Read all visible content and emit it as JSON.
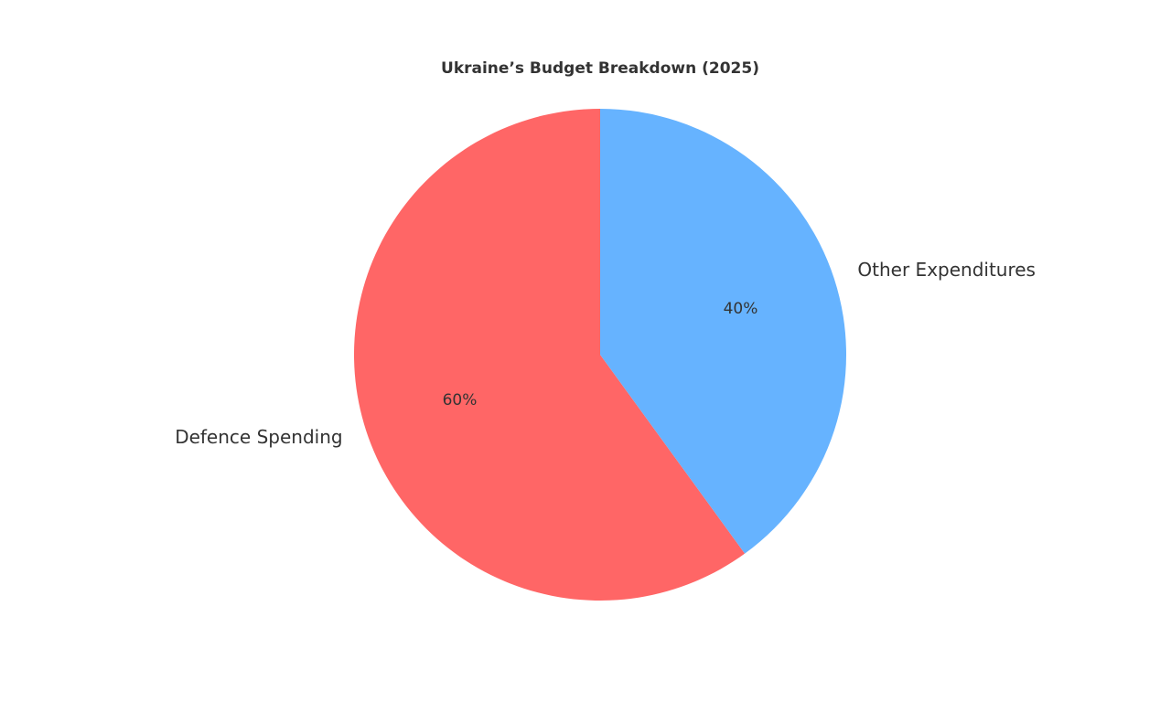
{
  "chart_data": {
    "type": "pie",
    "title": "Ukraine’s Budget Breakdown (2025)",
    "categories": [
      "Defence Spending",
      "Other Expenditures"
    ],
    "values": [
      60,
      40
    ],
    "value_labels": [
      "60%",
      "40%"
    ],
    "colors": [
      "#ff6666",
      "#66b3ff"
    ]
  }
}
